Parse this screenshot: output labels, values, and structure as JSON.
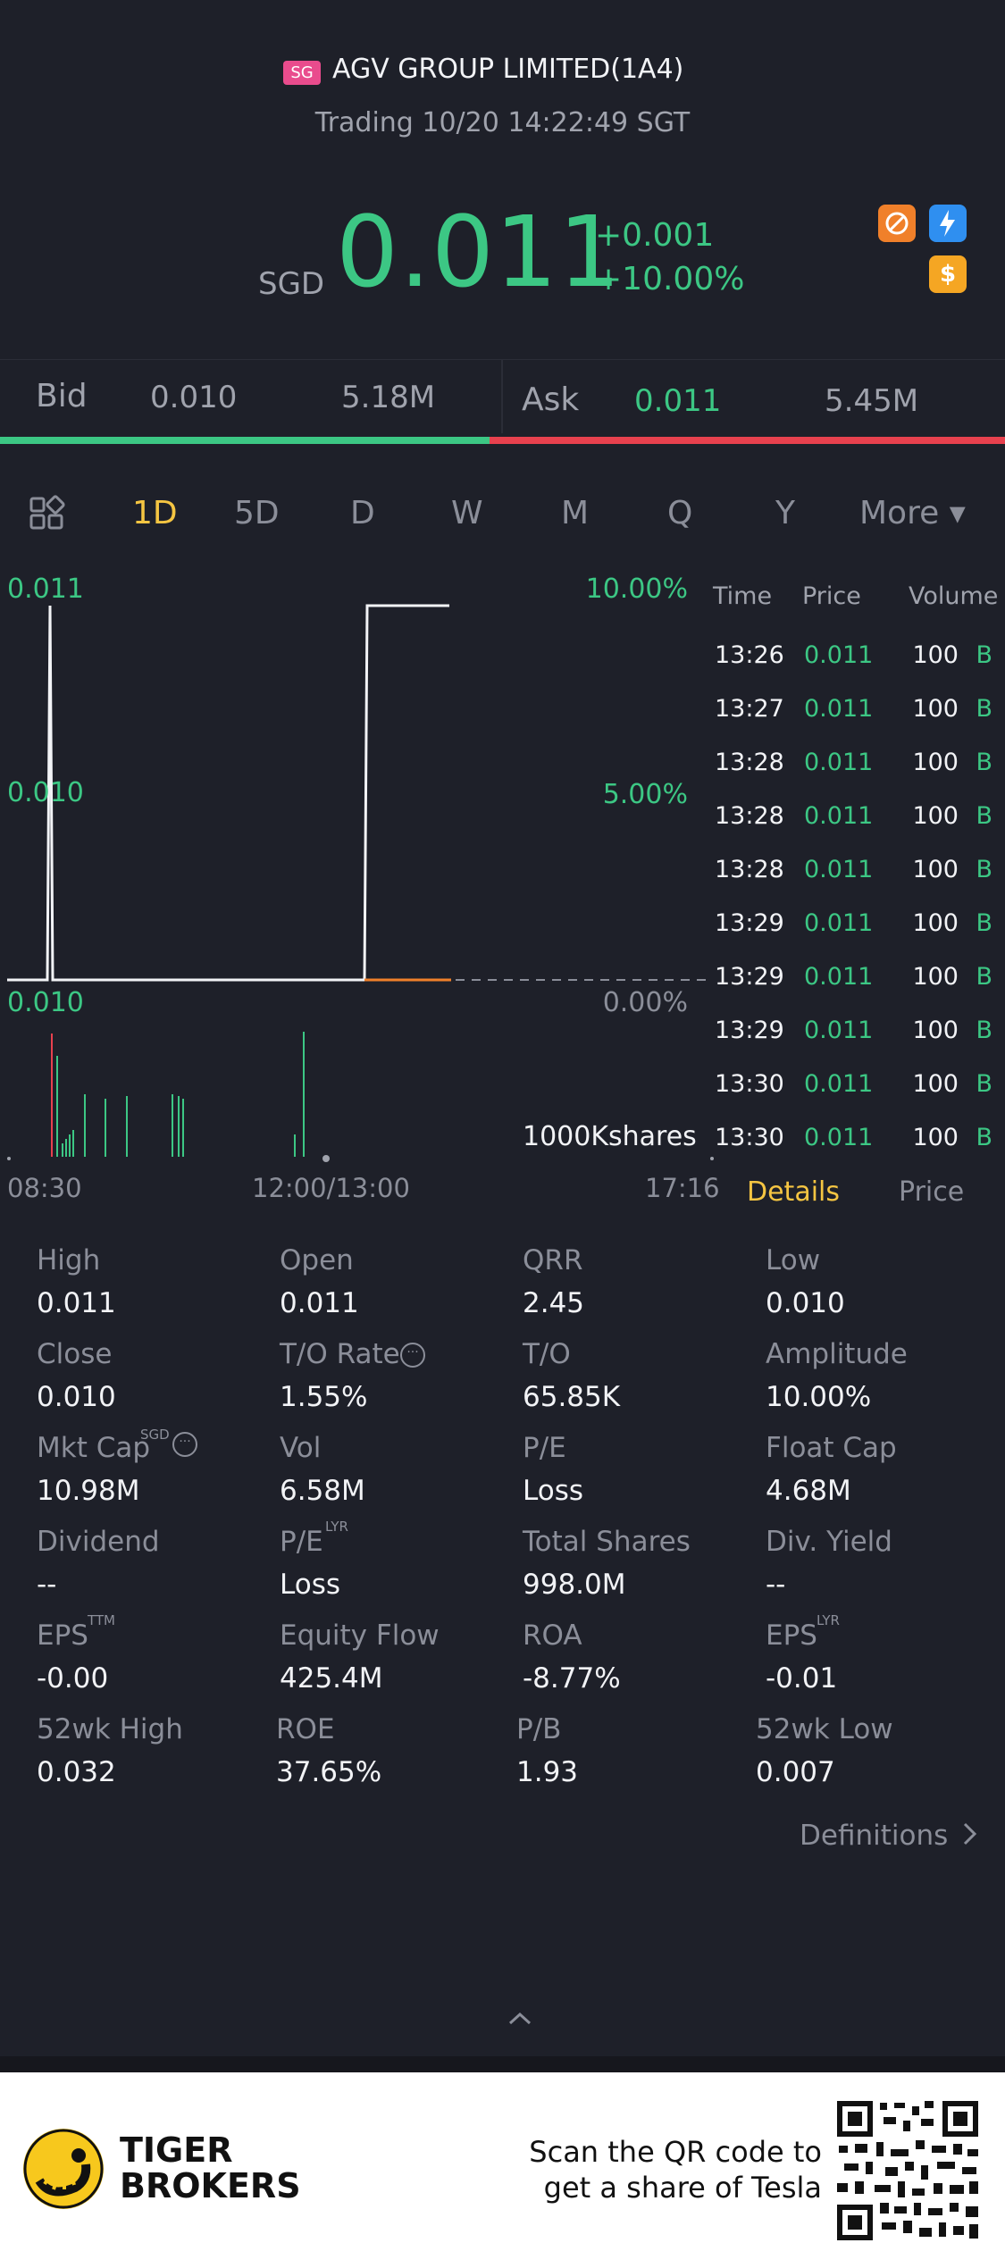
{
  "header": {
    "market_tag": "SG",
    "stock_name": "AGV GROUP LIMITED(1A4)",
    "trading_status": "Trading 10/20 14:22:49 SGT",
    "currency": "SGD",
    "last_price": "0.011",
    "change_abs": "+0.001",
    "change_pct": "+10.00%",
    "badges": [
      "no-short-icon",
      "level1-icon",
      "dollar-icon"
    ]
  },
  "bidask": {
    "bid_label": "Bid",
    "bid_price": "0.010",
    "bid_size": "5.18M",
    "ask_label": "Ask",
    "ask_price": "0.011",
    "ask_size": "5.45M",
    "bid_ratio": 0.487
  },
  "tabs": [
    "1D",
    "5D",
    "D",
    "W",
    "M",
    "Q",
    "Y",
    "More ▾"
  ],
  "active_tab": "1D",
  "chart": {
    "price_top": "0.011",
    "price_mid": "0.010",
    "price_bottom": "0.010",
    "pct_top": "10.00%",
    "pct_mid": "5.00%",
    "pct_bottom": "0.00%",
    "volume_label": "1000Kshares",
    "time_start": "08:30",
    "time_mid": "12:00/13:00",
    "time_end": "17:16"
  },
  "ticks": {
    "headers": {
      "time": "Time",
      "price": "Price",
      "volume": "Volume"
    },
    "rows": [
      {
        "time": "13:26",
        "price": "0.011",
        "volume": "100",
        "side": "B"
      },
      {
        "time": "13:27",
        "price": "0.011",
        "volume": "100",
        "side": "B"
      },
      {
        "time": "13:28",
        "price": "0.011",
        "volume": "100",
        "side": "B"
      },
      {
        "time": "13:28",
        "price": "0.011",
        "volume": "100",
        "side": "B"
      },
      {
        "time": "13:28",
        "price": "0.011",
        "volume": "100",
        "side": "B"
      },
      {
        "time": "13:29",
        "price": "0.011",
        "volume": "100",
        "side": "B"
      },
      {
        "time": "13:29",
        "price": "0.011",
        "volume": "100",
        "side": "B"
      },
      {
        "time": "13:29",
        "price": "0.011",
        "volume": "100",
        "side": "B"
      },
      {
        "time": "13:30",
        "price": "0.011",
        "volume": "100",
        "side": "B"
      },
      {
        "time": "13:30",
        "price": "0.011",
        "volume": "100",
        "side": "B"
      }
    ]
  },
  "panel_tabs": {
    "details": "Details",
    "price": "Price"
  },
  "stats": {
    "high": {
      "label": "High",
      "value": "0.011"
    },
    "open": {
      "label": "Open",
      "value": "0.011"
    },
    "qrr": {
      "label": "QRR",
      "value": "2.45"
    },
    "low": {
      "label": "Low",
      "value": "0.010"
    },
    "close": {
      "label": "Close",
      "value": "0.010"
    },
    "to_rate": {
      "label": "T/O Rate",
      "value": "1.55%"
    },
    "to": {
      "label": "T/O",
      "value": "65.85K"
    },
    "amplitude": {
      "label": "Amplitude",
      "value": "10.00%"
    },
    "mkt_cap": {
      "label": "Mkt Cap",
      "sup": "SGD",
      "value": "10.98M"
    },
    "vol": {
      "label": "Vol",
      "value": "6.58M"
    },
    "pe": {
      "label": "P/E",
      "value": "Loss"
    },
    "float_cap": {
      "label": "Float Cap",
      "value": "4.68M"
    },
    "dividend": {
      "label": "Dividend",
      "value": "--"
    },
    "pe_lyr": {
      "label": "P/E",
      "sup": "LYR",
      "value": "Loss"
    },
    "total_shares": {
      "label": "Total Shares",
      "value": "998.0M"
    },
    "div_yield": {
      "label": "Div. Yield",
      "value": "--"
    },
    "eps_ttm": {
      "label": "EPS",
      "sup": "TTM",
      "value": "-0.00"
    },
    "equity_flow": {
      "label": "Equity Flow",
      "value": "425.4M"
    },
    "roa": {
      "label": "ROA",
      "value": "-8.77%"
    },
    "eps_lyr": {
      "label": "EPS",
      "sup": "LYR",
      "value": "-0.01"
    },
    "wk52_high": {
      "label": "52wk High",
      "value": "0.032"
    },
    "roe": {
      "label": "ROE",
      "value": "37.65%"
    },
    "pb": {
      "label": "P/B",
      "value": "1.93"
    },
    "wk52_low": {
      "label": "52wk Low",
      "value": "0.007"
    }
  },
  "definitions_label": "Definitions",
  "footer": {
    "brand_line1": "TIGER",
    "brand_line2": "BROKERS",
    "scan_line1": "Scan the QR code to",
    "scan_line2": "get a share of Tesla"
  },
  "colors": {
    "background": "#1e2029",
    "up_green": "#3cc784",
    "down_red": "#e8414e",
    "accent_yellow": "#f5c542"
  }
}
